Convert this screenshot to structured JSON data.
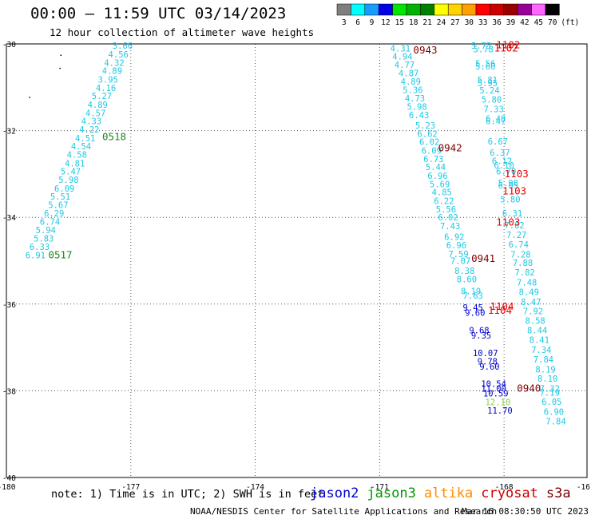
{
  "header": {
    "title": "00:00 — 11:59 UTC 03/14/2023",
    "subtitle": "12 hour collection of altimeter wave heights"
  },
  "legend_scale": {
    "unit": "(ft)",
    "bins": [
      {
        "label": "3",
        "color": "#7f7f7f"
      },
      {
        "label": "6",
        "color": "#00ffff"
      },
      {
        "label": "9",
        "color": "#1a9cff"
      },
      {
        "label": "12",
        "color": "#0000e6"
      },
      {
        "label": "15",
        "color": "#00e600"
      },
      {
        "label": "18",
        "color": "#00b300"
      },
      {
        "label": "21",
        "color": "#008000"
      },
      {
        "label": "24",
        "color": "#ffff00"
      },
      {
        "label": "27",
        "color": "#ffd200"
      },
      {
        "label": "30",
        "color": "#ffa000"
      },
      {
        "label": "33",
        "color": "#ff0000"
      },
      {
        "label": "36",
        "color": "#cc0000"
      },
      {
        "label": "39",
        "color": "#990000"
      },
      {
        "label": "42",
        "color": "#990099"
      },
      {
        "label": "45",
        "color": "#ff66ff"
      },
      {
        "label": "70",
        "color": "#000000"
      }
    ]
  },
  "footer": {
    "note": "note: 1) Time is in UTC; 2) SWH is in feet",
    "credit": "NOAA/NESDIS Center for Satellite Applications and Research",
    "generated": "Mar 16 08:30:50 UTC 2023",
    "satellites": [
      {
        "name": "jason2",
        "color": "#0000cc"
      },
      {
        "name": "jason3",
        "color": "#009900"
      },
      {
        "name": "altika",
        "color": "#ff8c00"
      },
      {
        "name": "cryosat",
        "color": "#cc0000"
      },
      {
        "name": "s3a",
        "color": "#800000"
      }
    ]
  },
  "chart_data": {
    "type": "scatter",
    "title": "00:00 — 11:59 UTC 03/14/2023",
    "subtitle": "12 hour collection of altimeter wave heights",
    "xlim": [
      -180,
      -166
    ],
    "ylim": [
      -40,
      -30
    ],
    "x_ticks": [
      "-180",
      "-177",
      "-174",
      "-171",
      "-168",
      "-16"
    ],
    "y_ticks": [
      "-30",
      "-32",
      "-34",
      "-36",
      "-38",
      "-40"
    ],
    "grid": true,
    "colors": {
      "cyan": "#1ec8e6",
      "blue": "#0000cc",
      "green": "#1a8a1a",
      "lightgreen": "#88d048",
      "red": "#ee0000",
      "darkred": "#800000"
    },
    "points": [
      {
        "t": "3.66",
        "x": -177.2,
        "y": -30.04,
        "c": "cyan"
      },
      {
        "t": "4.56",
        "x": -177.3,
        "y": -30.24,
        "c": "cyan"
      },
      {
        "t": "4.32",
        "x": -177.4,
        "y": -30.43,
        "c": "cyan"
      },
      {
        "t": "4.89",
        "x": -177.45,
        "y": -30.62,
        "c": "cyan"
      },
      {
        "t": "3.95",
        "x": -177.55,
        "y": -30.82,
        "c": "cyan"
      },
      {
        "t": "4.16",
        "x": -177.6,
        "y": -31.01,
        "c": "cyan"
      },
      {
        "t": "5.27",
        "x": -177.7,
        "y": -31.2,
        "c": "cyan"
      },
      {
        "t": "4.89",
        "x": -177.8,
        "y": -31.4,
        "c": "cyan"
      },
      {
        "t": "4.57",
        "x": -177.85,
        "y": -31.59,
        "c": "cyan"
      },
      {
        "t": "4.33",
        "x": -177.95,
        "y": -31.78,
        "c": "cyan"
      },
      {
        "t": "4.22",
        "x": -178.0,
        "y": -31.97,
        "c": "cyan"
      },
      {
        "t": "4.51",
        "x": -178.1,
        "y": -32.17,
        "c": "cyan"
      },
      {
        "t": "4.54",
        "x": -178.2,
        "y": -32.36,
        "c": "cyan"
      },
      {
        "t": "4.58",
        "x": -178.3,
        "y": -32.55,
        "c": "cyan"
      },
      {
        "t": "4.81",
        "x": -178.35,
        "y": -32.75,
        "c": "cyan"
      },
      {
        "t": "5.47",
        "x": -178.45,
        "y": -32.94,
        "c": "cyan"
      },
      {
        "t": "5.98",
        "x": -178.5,
        "y": -33.13,
        "c": "cyan"
      },
      {
        "t": "6.09",
        "x": -178.6,
        "y": -33.33,
        "c": "cyan"
      },
      {
        "t": "5.51",
        "x": -178.7,
        "y": -33.52,
        "c": "cyan"
      },
      {
        "t": "5.67",
        "x": -178.75,
        "y": -33.71,
        "c": "cyan"
      },
      {
        "t": "6.29",
        "x": -178.85,
        "y": -33.9,
        "c": "cyan"
      },
      {
        "t": "6.74",
        "x": -178.95,
        "y": -34.1,
        "c": "cyan"
      },
      {
        "t": "5.94",
        "x": -179.05,
        "y": -34.29,
        "c": "cyan"
      },
      {
        "t": "5.83",
        "x": -179.1,
        "y": -34.48,
        "c": "cyan"
      },
      {
        "t": "6.33",
        "x": -179.2,
        "y": -34.68,
        "c": "cyan"
      },
      {
        "t": "6.91",
        "x": -179.3,
        "y": -34.87,
        "c": "cyan"
      },
      {
        "t": "0518",
        "x": -177.4,
        "y": -32.15,
        "c": "green"
      },
      {
        "t": "0517",
        "x": -178.7,
        "y": -34.87,
        "c": "green"
      },
      {
        "t": "4.31",
        "x": -170.5,
        "y": -30.1,
        "c": "cyan"
      },
      {
        "t": "4.94",
        "x": -170.45,
        "y": -30.29,
        "c": "cyan"
      },
      {
        "t": "4.77",
        "x": -170.4,
        "y": -30.48,
        "c": "cyan"
      },
      {
        "t": "4.87",
        "x": -170.3,
        "y": -30.67,
        "c": "cyan"
      },
      {
        "t": "4.89",
        "x": -170.25,
        "y": -30.87,
        "c": "cyan"
      },
      {
        "t": "5.36",
        "x": -170.2,
        "y": -31.06,
        "c": "cyan"
      },
      {
        "t": "4.73",
        "x": -170.15,
        "y": -31.25,
        "c": "cyan"
      },
      {
        "t": "5.98",
        "x": -170.1,
        "y": -31.45,
        "c": "cyan"
      },
      {
        "t": "6.43",
        "x": -170.05,
        "y": -31.64,
        "c": "cyan"
      },
      {
        "t": "5.23",
        "x": -169.9,
        "y": -31.88,
        "c": "cyan"
      },
      {
        "t": "6.62",
        "x": -169.85,
        "y": -32.07,
        "c": "cyan"
      },
      {
        "t": "6.02",
        "x": -169.8,
        "y": -32.26,
        "c": "cyan"
      },
      {
        "t": "6.09",
        "x": -169.75,
        "y": -32.46,
        "c": "cyan"
      },
      {
        "t": "6.73",
        "x": -169.7,
        "y": -32.65,
        "c": "cyan"
      },
      {
        "t": "5.44",
        "x": -169.65,
        "y": -32.84,
        "c": "cyan"
      },
      {
        "t": "6.96",
        "x": -169.6,
        "y": -33.04,
        "c": "cyan"
      },
      {
        "t": "5.69",
        "x": -169.55,
        "y": -33.23,
        "c": "cyan"
      },
      {
        "t": "4.85",
        "x": -169.5,
        "y": -33.42,
        "c": "cyan"
      },
      {
        "t": "6.22",
        "x": -169.45,
        "y": -33.62,
        "c": "cyan"
      },
      {
        "t": "5.56",
        "x": -169.4,
        "y": -33.81,
        "c": "cyan"
      },
      {
        "t": "6.02",
        "x": -169.35,
        "y": -34.0,
        "c": "cyan"
      },
      {
        "t": "7.43",
        "x": -169.3,
        "y": -34.2,
        "c": "cyan"
      },
      {
        "t": "6.92",
        "x": -169.2,
        "y": -34.45,
        "c": "cyan"
      },
      {
        "t": "6.96",
        "x": -169.15,
        "y": -34.64,
        "c": "cyan"
      },
      {
        "t": "7.59",
        "x": -169.1,
        "y": -34.84,
        "c": "cyan"
      },
      {
        "t": "7.07",
        "x": -169.05,
        "y": -35.0,
        "c": "cyan"
      },
      {
        "t": "8.38",
        "x": -168.95,
        "y": -35.23,
        "c": "cyan"
      },
      {
        "t": "8.60",
        "x": -168.9,
        "y": -35.42,
        "c": "cyan"
      },
      {
        "t": "8.19",
        "x": -168.8,
        "y": -35.7,
        "c": "cyan"
      },
      {
        "t": "7.63",
        "x": -168.75,
        "y": -35.8,
        "c": "cyan"
      },
      {
        "t": "9.45",
        "x": -168.75,
        "y": -36.08,
        "c": "blue"
      },
      {
        "t": "9.60",
        "x": -168.7,
        "y": -36.2,
        "c": "blue"
      },
      {
        "t": "9.68",
        "x": -168.6,
        "y": -36.6,
        "c": "blue"
      },
      {
        "t": "9.35",
        "x": -168.55,
        "y": -36.72,
        "c": "blue"
      },
      {
        "t": "10.07",
        "x": -168.45,
        "y": -37.13,
        "c": "blue"
      },
      {
        "t": "9.78",
        "x": -168.4,
        "y": -37.32,
        "c": "blue"
      },
      {
        "t": "9.60",
        "x": -168.35,
        "y": -37.44,
        "c": "blue"
      },
      {
        "t": "10.54",
        "x": -168.25,
        "y": -37.84,
        "c": "blue"
      },
      {
        "t": "11.00",
        "x": -168.25,
        "y": -37.95,
        "c": "blue"
      },
      {
        "t": "10.59",
        "x": -168.2,
        "y": -38.06,
        "c": "blue"
      },
      {
        "t": "12.10",
        "x": -168.15,
        "y": -38.26,
        "c": "lightgreen"
      },
      {
        "t": "11.70",
        "x": -168.1,
        "y": -38.45,
        "c": "blue"
      },
      {
        "t": "5.75",
        "x": -168.55,
        "y": -30.04,
        "c": "cyan"
      },
      {
        "t": "5.78",
        "x": -168.5,
        "y": -30.12,
        "c": "cyan"
      },
      {
        "t": "5.56",
        "x": -168.45,
        "y": -30.45,
        "c": "cyan"
      },
      {
        "t": "5.60",
        "x": -168.45,
        "y": -30.52,
        "c": "cyan"
      },
      {
        "t": "5.81",
        "x": -168.4,
        "y": -30.83,
        "c": "cyan"
      },
      {
        "t": "5.95",
        "x": -168.4,
        "y": -30.9,
        "c": "cyan"
      },
      {
        "t": "5.24",
        "x": -168.35,
        "y": -31.07,
        "c": "cyan"
      },
      {
        "t": "5.80",
        "x": -168.3,
        "y": -31.28,
        "c": "cyan"
      },
      {
        "t": "7.33",
        "x": -168.25,
        "y": -31.5,
        "c": "cyan"
      },
      {
        "t": "6.48",
        "x": -168.2,
        "y": -31.72,
        "c": "cyan"
      },
      {
        "t": "6.47",
        "x": -168.2,
        "y": -31.78,
        "c": "cyan"
      },
      {
        "t": "6.67",
        "x": -168.15,
        "y": -32.25,
        "c": "cyan"
      },
      {
        "t": "6.37",
        "x": -168.1,
        "y": -32.5,
        "c": "cyan"
      },
      {
        "t": "6.12",
        "x": -168.05,
        "y": -32.7,
        "c": "cyan"
      },
      {
        "t": "6.10",
        "x": -168.0,
        "y": -32.8,
        "c": "cyan"
      },
      {
        "t": "6.70",
        "x": -167.95,
        "y": -32.94,
        "c": "cyan"
      },
      {
        "t": "5.98",
        "x": -167.9,
        "y": -33.2,
        "c": "cyan"
      },
      {
        "t": "6.05",
        "x": -167.9,
        "y": -33.26,
        "c": "cyan"
      },
      {
        "t": "5.80",
        "x": -167.85,
        "y": -33.58,
        "c": "cyan"
      },
      {
        "t": "6.31",
        "x": -167.8,
        "y": -33.9,
        "c": "cyan"
      },
      {
        "t": "7.82",
        "x": -167.75,
        "y": -34.18,
        "c": "cyan"
      },
      {
        "t": "7.27",
        "x": -167.7,
        "y": -34.4,
        "c": "cyan"
      },
      {
        "t": "6.74",
        "x": -167.65,
        "y": -34.62,
        "c": "cyan"
      },
      {
        "t": "7.28",
        "x": -167.6,
        "y": -34.85,
        "c": "cyan"
      },
      {
        "t": "7.88",
        "x": -167.55,
        "y": -35.05,
        "c": "cyan"
      },
      {
        "t": "7.82",
        "x": -167.5,
        "y": -35.27,
        "c": "cyan"
      },
      {
        "t": "7.48",
        "x": -167.45,
        "y": -35.5,
        "c": "cyan"
      },
      {
        "t": "8.49",
        "x": -167.4,
        "y": -35.72,
        "c": "cyan"
      },
      {
        "t": "8.47",
        "x": -167.35,
        "y": -35.95,
        "c": "cyan"
      },
      {
        "t": "7.92",
        "x": -167.3,
        "y": -36.16,
        "c": "cyan"
      },
      {
        "t": "8.58",
        "x": -167.25,
        "y": -36.38,
        "c": "cyan"
      },
      {
        "t": "8.44",
        "x": -167.2,
        "y": -36.6,
        "c": "cyan"
      },
      {
        "t": "8.41",
        "x": -167.15,
        "y": -36.82,
        "c": "cyan"
      },
      {
        "t": "7.34",
        "x": -167.1,
        "y": -37.05,
        "c": "cyan"
      },
      {
        "t": "7.84",
        "x": -167.05,
        "y": -37.27,
        "c": "cyan"
      },
      {
        "t": "8.19",
        "x": -167.0,
        "y": -37.5,
        "c": "cyan"
      },
      {
        "t": "8.10",
        "x": -166.95,
        "y": -37.72,
        "c": "cyan"
      },
      {
        "t": "7.32",
        "x": -166.9,
        "y": -37.95,
        "c": "cyan"
      },
      {
        "t": "7.19",
        "x": -166.9,
        "y": -38.04,
        "c": "cyan"
      },
      {
        "t": "6.05",
        "x": -166.85,
        "y": -38.25,
        "c": "cyan"
      },
      {
        "t": "6.90",
        "x": -166.8,
        "y": -38.48,
        "c": "cyan"
      },
      {
        "t": "7.84",
        "x": -166.75,
        "y": -38.7,
        "c": "cyan"
      },
      {
        "t": "0943",
        "x": -169.9,
        "y": -30.15,
        "c": "darkred"
      },
      {
        "t": "0942",
        "x": -169.3,
        "y": -32.4,
        "c": "darkred"
      },
      {
        "t": "0941",
        "x": -168.5,
        "y": -34.95,
        "c": "darkred"
      },
      {
        "t": "0940",
        "x": -167.4,
        "y": -37.95,
        "c": "darkred"
      },
      {
        "t": "1102",
        "x": -167.9,
        "y": -30.03,
        "c": "red"
      },
      {
        "t": "1102",
        "x": -167.95,
        "y": -30.1,
        "c": "red"
      },
      {
        "t": "1103",
        "x": -167.7,
        "y": -33.0,
        "c": "red"
      },
      {
        "t": "1103",
        "x": -167.75,
        "y": -33.4,
        "c": "red"
      },
      {
        "t": "1103",
        "x": -167.9,
        "y": -34.12,
        "c": "red"
      },
      {
        "t": "1104",
        "x": -168.05,
        "y": -36.06,
        "c": "red"
      },
      {
        "t": "1104",
        "x": -168.1,
        "y": -36.15,
        "c": "red"
      }
    ]
  }
}
